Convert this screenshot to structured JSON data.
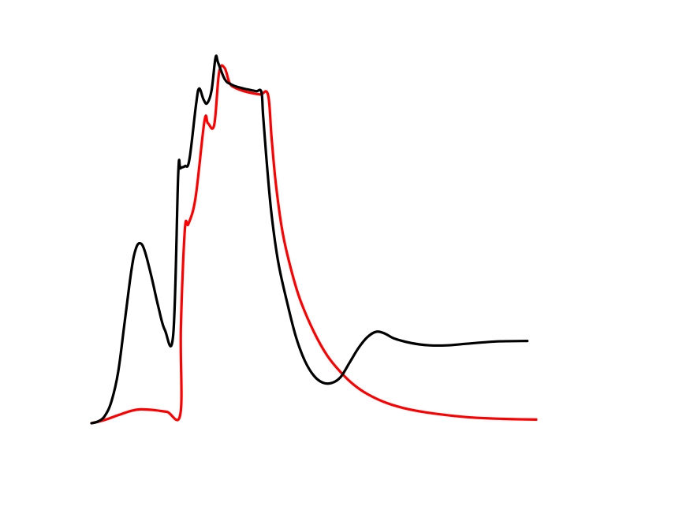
{
  "chart_data": {
    "type": "line",
    "title": "",
    "xlabel": "",
    "ylabel": "",
    "xlim": [
      0,
      100
    ],
    "ylim": [
      0,
      100
    ],
    "grid": false,
    "axes_visible": false,
    "legend": "none",
    "series": [
      {
        "color": "#ff0000",
        "points": [
          [
            0,
            0
          ],
          [
            3,
            0.9
          ],
          [
            6,
            2.2
          ],
          [
            9,
            3.4
          ],
          [
            11,
            3.8
          ],
          [
            14,
            3.6
          ],
          [
            17,
            3.1
          ],
          [
            20,
            2.6
          ],
          [
            20.1,
            26
          ],
          [
            21,
            53
          ],
          [
            21.8,
            54.5
          ],
          [
            23.4,
            61.7
          ],
          [
            25.4,
            82.6
          ],
          [
            26.2,
            82
          ],
          [
            27.6,
            81.6
          ],
          [
            28.7,
            96
          ],
          [
            29.9,
            97.2
          ],
          [
            31,
            93.2
          ],
          [
            32,
            91.9
          ],
          [
            34,
            90.9
          ],
          [
            36,
            90.3
          ],
          [
            38,
            89.9
          ],
          [
            39.7,
            89.8
          ],
          [
            40.5,
            78
          ],
          [
            41.5,
            65
          ],
          [
            43,
            52
          ],
          [
            45,
            41.5
          ],
          [
            47,
            33.5
          ],
          [
            50,
            25
          ],
          [
            53,
            18.5
          ],
          [
            56,
            14
          ],
          [
            59,
            10.5
          ],
          [
            62,
            8
          ],
          [
            66,
            5.7
          ],
          [
            70,
            4.2
          ],
          [
            75,
            3
          ],
          [
            80,
            2.2
          ],
          [
            85,
            1.6
          ],
          [
            90,
            1.3
          ],
          [
            95,
            1.1
          ],
          [
            100,
            1
          ]
        ]
      },
      {
        "color": "#000000",
        "points": [
          [
            0,
            0
          ],
          [
            1.5,
            0.5
          ],
          [
            3,
            2
          ],
          [
            4.5,
            6
          ],
          [
            6,
            14
          ],
          [
            7.5,
            28
          ],
          [
            9,
            42
          ],
          [
            10,
            47.8
          ],
          [
            11,
            49.2
          ],
          [
            12,
            47
          ],
          [
            13.5,
            40
          ],
          [
            15,
            32
          ],
          [
            16.5,
            25.5
          ],
          [
            18.4,
            24.5
          ],
          [
            19.5,
            68
          ],
          [
            20,
            69.7
          ],
          [
            21,
            70.3
          ],
          [
            22,
            72
          ],
          [
            23.5,
            87
          ],
          [
            24.2,
            91.5
          ],
          [
            25.2,
            88.5
          ],
          [
            26,
            87.5
          ],
          [
            27,
            91
          ],
          [
            27.9,
            100
          ],
          [
            28.5,
            98.5
          ],
          [
            30,
            94
          ],
          [
            31.5,
            92.6
          ],
          [
            33,
            91.9
          ],
          [
            35,
            91.3
          ],
          [
            37,
            90.8
          ],
          [
            38.2,
            90.6
          ],
          [
            38.6,
            84
          ],
          [
            39.5,
            70
          ],
          [
            40.5,
            57
          ],
          [
            42,
            44
          ],
          [
            44,
            33
          ],
          [
            46,
            23.5
          ],
          [
            48,
            17
          ],
          [
            50,
            13
          ],
          [
            52,
            11.1
          ],
          [
            54,
            11
          ],
          [
            56,
            12.6
          ],
          [
            58,
            16.5
          ],
          [
            60,
            20.5
          ],
          [
            62,
            23.5
          ],
          [
            64,
            25
          ],
          [
            66,
            24.5
          ],
          [
            68,
            23.2
          ],
          [
            72,
            21.9
          ],
          [
            76,
            21.3
          ],
          [
            80,
            21.3
          ],
          [
            84,
            21.7
          ],
          [
            88,
            22.1
          ],
          [
            92,
            22.4
          ],
          [
            98,
            22.5
          ]
        ]
      }
    ]
  }
}
